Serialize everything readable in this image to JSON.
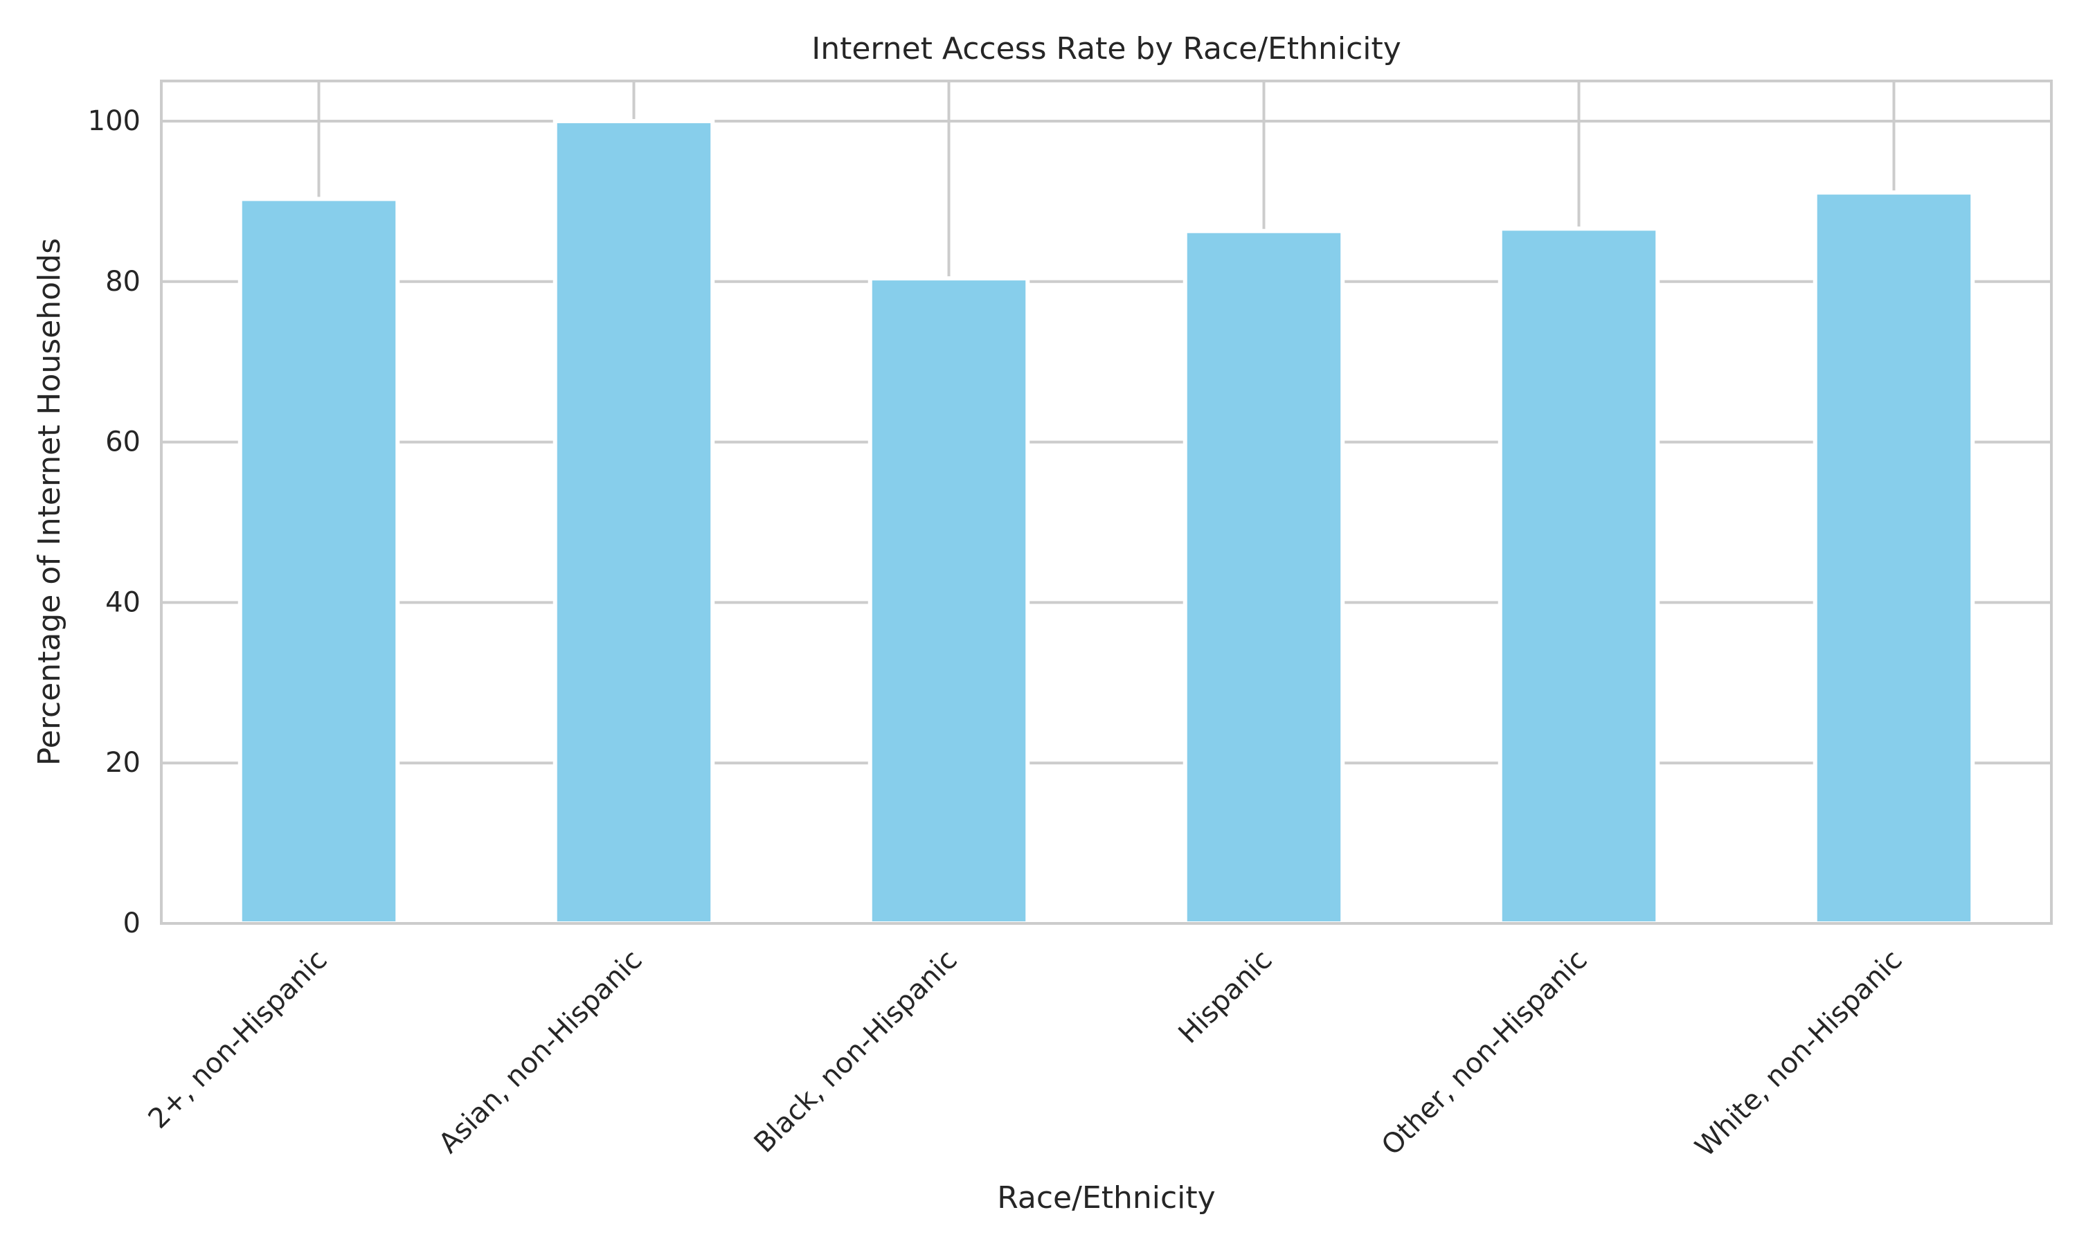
{
  "chart_data": {
    "type": "bar",
    "title": "Internet Access Rate by Race/Ethnicity",
    "xlabel": "Race/Ethnicity",
    "ylabel": "Percentage of Internet Households",
    "categories": [
      "2+, non-Hispanic",
      "Asian, non-Hispanic",
      "Black, non-Hispanic",
      "Hispanic",
      "Other, non-Hispanic",
      "White, non-Hispanic"
    ],
    "values": [
      90.3,
      100.0,
      80.4,
      86.3,
      86.6,
      91.1
    ],
    "ylim": [
      0,
      105
    ],
    "yticks": [
      0,
      20,
      40,
      60,
      80,
      100
    ],
    "grid": true,
    "legend": "none",
    "colors": {
      "bar": "#87ceeb",
      "grid": "#cccccc",
      "axes": "#cccccc",
      "text": "#262626"
    }
  }
}
